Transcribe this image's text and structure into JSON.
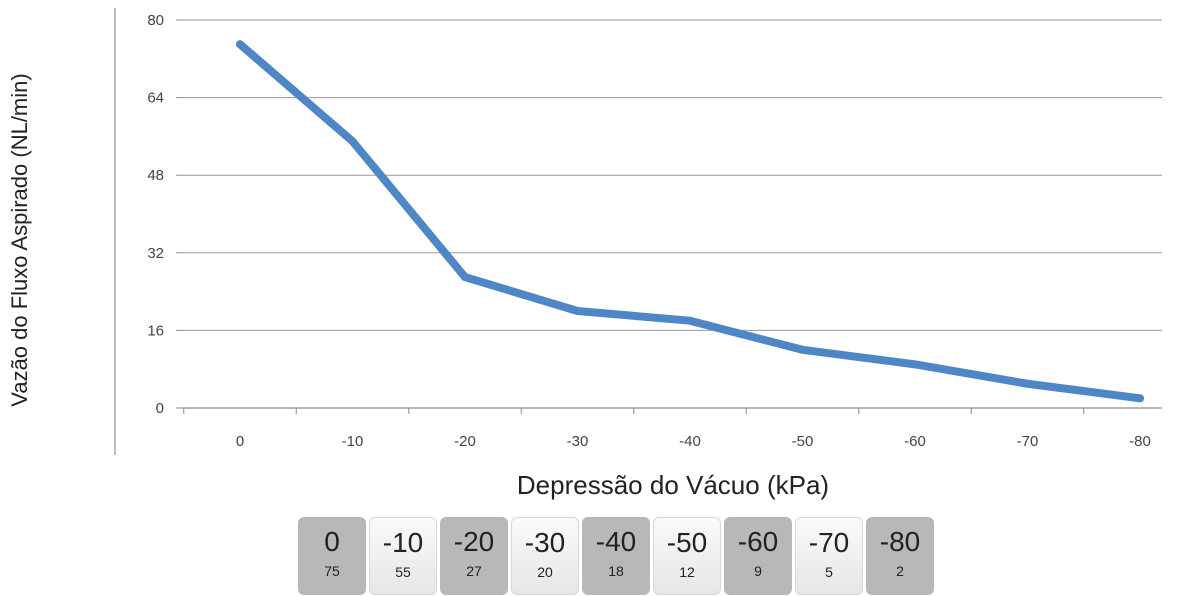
{
  "chart_data": {
    "type": "line",
    "xlabel": "Depressão do Vácuo (kPa)",
    "ylabel": "Vazão do Fluxo Aspirado (NL/min)",
    "x": [
      0,
      -10,
      -20,
      -30,
      -40,
      -50,
      -60,
      -70,
      -80
    ],
    "x_tick_labels": [
      "0",
      "-10",
      "-20",
      "-30",
      "-40",
      "-50",
      "-60",
      "-70",
      "-80"
    ],
    "y_tick_labels": [
      "0",
      "16",
      "32",
      "48",
      "64",
      "80"
    ],
    "ylim": [
      0,
      80
    ],
    "grid": "horizontal",
    "series": [
      {
        "values": [
          75,
          55,
          27,
          20,
          18,
          12,
          9,
          5,
          2
        ],
        "color": "#4f86c6"
      }
    ]
  },
  "value_table": [
    {
      "x": "0",
      "y": "75"
    },
    {
      "x": "-10",
      "y": "55"
    },
    {
      "x": "-20",
      "y": "27"
    },
    {
      "x": "-30",
      "y": "20"
    },
    {
      "x": "-40",
      "y": "18"
    },
    {
      "x": "-50",
      "y": "12"
    },
    {
      "x": "-60",
      "y": "9"
    },
    {
      "x": "-70",
      "y": "5"
    },
    {
      "x": "-80",
      "y": "2"
    }
  ]
}
